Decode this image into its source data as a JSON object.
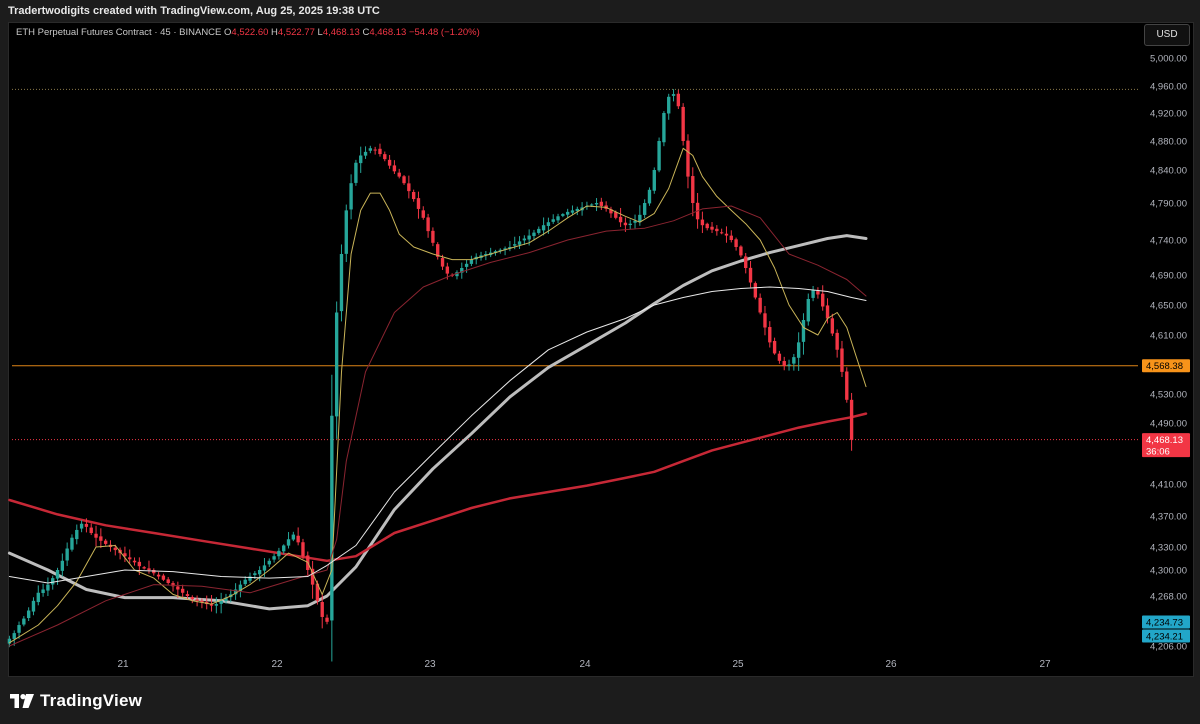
{
  "header": {
    "attribution": "Tradertwodigits created with TradingView.com, Aug 25, 2025 19:38 UTC"
  },
  "legend": {
    "symbol": "ETH Perpetual Futures Contract · 45 · BINANCE",
    "open_label": "O",
    "open": "4,522.60",
    "high_label": "H",
    "high": "4,522.77",
    "low_label": "L",
    "low": "4,468.13",
    "close_label": "C",
    "close": "4,468.13",
    "change": "−54.48 (−1.20%)"
  },
  "currency_button": "USD",
  "brand": {
    "name": "TradingView"
  },
  "colors": {
    "up": "#26a69a",
    "down": "#f23645",
    "sma_fast": "#c9b458",
    "sma_mid": "#8a2430",
    "sma_slow": "#e8e8e8",
    "sma_main": "#bdbdbd",
    "ema_long": "#c62836",
    "price_line": "#f7931a",
    "cyan_tag": "#22a6c8"
  },
  "chart_data": {
    "type": "candlestick",
    "y_ticks": [
      {
        "value": 5000,
        "label": "5,000.00"
      },
      {
        "value": 4960,
        "label": "4,960.00"
      },
      {
        "value": 4920,
        "label": "4,920.00"
      },
      {
        "value": 4880,
        "label": "4,880.00"
      },
      {
        "value": 4840,
        "label": "4,840.00"
      },
      {
        "value": 4790,
        "label": "4,790.00"
      },
      {
        "value": 4740,
        "label": "4,740.00"
      },
      {
        "value": 4690,
        "label": "4,690.00"
      },
      {
        "value": 4650,
        "label": "4,650.00"
      },
      {
        "value": 4610,
        "label": "4,610.00"
      },
      {
        "value": 4530,
        "label": "4,530.00"
      },
      {
        "value": 4490,
        "label": "4,490.00"
      },
      {
        "value": 4410,
        "label": "4,410.00"
      },
      {
        "value": 4370,
        "label": "4,370.00"
      },
      {
        "value": 4330,
        "label": "4,330.00"
      },
      {
        "value": 4300,
        "label": "4,300.00"
      },
      {
        "value": 4268,
        "label": "4,268.00"
      },
      {
        "value": 4206,
        "label": "4,206.00"
      }
    ],
    "x_ticks": [
      "21",
      "22",
      "23",
      "24",
      "25",
      "26",
      "27"
    ],
    "price_tags": [
      {
        "label": "4,568.38",
        "value": 4568.38,
        "color": "#f7931a",
        "text_color": "#000000"
      },
      {
        "label": "4,468.13",
        "value": 4468.13,
        "color": "#f23645",
        "text_color": "#ffffff",
        "sub": "36:06"
      },
      {
        "label": "4,234.73",
        "value": 4234.73,
        "color": "#22a6c8",
        "text_color": "#000000"
      },
      {
        "label": "4,234.21",
        "value": 4234.21,
        "color": "#22a6c8",
        "text_color": "#000000"
      }
    ],
    "anchors": {
      "close": [
        4215,
        4222,
        4232,
        4240,
        4250,
        4262,
        4272,
        4276,
        4282,
        4290,
        4300,
        4312,
        4328,
        4342,
        4352,
        4360,
        4356,
        4348,
        4342,
        4338,
        4334,
        4330,
        4326,
        4322,
        4318,
        4314,
        4310,
        4305,
        4302,
        4300,
        4296,
        4292,
        4288,
        4284,
        4280,
        4276,
        4272,
        4268,
        4264,
        4262,
        4260,
        4258,
        4256,
        4258,
        4262,
        4266,
        4270,
        4276,
        4282,
        4288,
        4292,
        4296,
        4300,
        4306,
        4312,
        4318,
        4325,
        4332,
        4340,
        4346,
        4336,
        4318,
        4300,
        4282,
        4262,
        4242,
        4236,
        4500,
        4640,
        4720,
        4780,
        4820,
        4850,
        4860,
        4865,
        4870,
        4868,
        4862,
        4855,
        4846,
        4838,
        4830,
        4820,
        4808,
        4796,
        4782,
        4770,
        4752,
        4736,
        4716,
        4702,
        4692,
        4690,
        4694,
        4700,
        4706,
        4712,
        4716,
        4718,
        4720,
        4722,
        4724,
        4726,
        4728,
        4730,
        4734,
        4738,
        4742,
        4746,
        4750,
        4755,
        4760,
        4764,
        4768,
        4772,
        4775,
        4778,
        4780,
        4782,
        4784,
        4786,
        4788,
        4790,
        4786,
        4782,
        4776,
        4770,
        4764,
        4760,
        4762,
        4766,
        4774,
        4790,
        4810,
        4840,
        4880,
        4920,
        4944,
        4948,
        4930,
        4880,
        4830,
        4790,
        4768,
        4760,
        4756,
        4754,
        4752,
        4750,
        4746,
        4740,
        4730,
        4718,
        4700,
        4680,
        4660,
        4640,
        4620,
        4600,
        4585,
        4575,
        4568,
        4570,
        4580,
        4600,
        4630,
        4658,
        4670,
        4664,
        4648,
        4632,
        4612,
        4590,
        4560,
        4522,
        4468
      ],
      "sma_fast_start": 0
    },
    "series": [
      {
        "name": "SMA fast",
        "color": "#c9b458",
        "width": 1,
        "points": [
          [
            0,
            4210
          ],
          [
            6,
            4232
          ],
          [
            10,
            4256
          ],
          [
            14,
            4286
          ],
          [
            18,
            4330
          ],
          [
            22,
            4332
          ],
          [
            26,
            4300
          ],
          [
            30,
            4290
          ],
          [
            34,
            4270
          ],
          [
            38,
            4262
          ],
          [
            42,
            4258
          ],
          [
            46,
            4268
          ],
          [
            50,
            4282
          ],
          [
            54,
            4300
          ],
          [
            58,
            4322
          ],
          [
            62,
            4310
          ],
          [
            65,
            4270
          ],
          [
            67,
            4300
          ],
          [
            69,
            4560
          ],
          [
            71,
            4720
          ],
          [
            73,
            4780
          ],
          [
            75,
            4805
          ],
          [
            77,
            4805
          ],
          [
            79,
            4780
          ],
          [
            81,
            4748
          ],
          [
            84,
            4730
          ],
          [
            88,
            4720
          ],
          [
            92,
            4712
          ],
          [
            96,
            4712
          ],
          [
            100,
            4720
          ],
          [
            104,
            4728
          ],
          [
            108,
            4736
          ],
          [
            112,
            4752
          ],
          [
            116,
            4770
          ],
          [
            120,
            4786
          ],
          [
            124,
            4784
          ],
          [
            128,
            4772
          ],
          [
            131,
            4764
          ],
          [
            134,
            4776
          ],
          [
            137,
            4812
          ],
          [
            140,
            4870
          ],
          [
            142,
            4860
          ],
          [
            144,
            4830
          ],
          [
            147,
            4800
          ],
          [
            150,
            4780
          ],
          [
            153,
            4762
          ],
          [
            156,
            4740
          ],
          [
            159,
            4700
          ],
          [
            162,
            4650
          ],
          [
            165,
            4620
          ],
          [
            168,
            4610
          ],
          [
            170,
            4632
          ],
          [
            172,
            4640
          ],
          [
            174,
            4620
          ],
          [
            176,
            4580
          ],
          [
            178,
            4540
          ]
        ]
      },
      {
        "name": "SMA mid",
        "color": "#8a2430",
        "width": 1,
        "points": [
          [
            0,
            4206
          ],
          [
            10,
            4232
          ],
          [
            20,
            4262
          ],
          [
            30,
            4282
          ],
          [
            40,
            4280
          ],
          [
            50,
            4272
          ],
          [
            60,
            4290
          ],
          [
            66,
            4300
          ],
          [
            68,
            4340
          ],
          [
            70,
            4440
          ],
          [
            74,
            4560
          ],
          [
            80,
            4640
          ],
          [
            86,
            4674
          ],
          [
            92,
            4690
          ],
          [
            100,
            4708
          ],
          [
            108,
            4722
          ],
          [
            116,
            4740
          ],
          [
            124,
            4752
          ],
          [
            132,
            4756
          ],
          [
            138,
            4766
          ],
          [
            144,
            4782
          ],
          [
            150,
            4786
          ],
          [
            156,
            4770
          ],
          [
            162,
            4720
          ],
          [
            168,
            4704
          ],
          [
            174,
            4684
          ],
          [
            178,
            4662
          ]
        ]
      },
      {
        "name": "SMA slow",
        "color": "#e8e8e8",
        "width": 1,
        "points": [
          [
            0,
            4292
          ],
          [
            8,
            4284
          ],
          [
            16,
            4292
          ],
          [
            24,
            4300
          ],
          [
            34,
            4298
          ],
          [
            44,
            4292
          ],
          [
            54,
            4290
          ],
          [
            62,
            4292
          ],
          [
            66,
            4306
          ],
          [
            72,
            4332
          ],
          [
            80,
            4400
          ],
          [
            88,
            4450
          ],
          [
            96,
            4500
          ],
          [
            104,
            4548
          ],
          [
            112,
            4590
          ],
          [
            120,
            4614
          ],
          [
            128,
            4632
          ],
          [
            134,
            4650
          ],
          [
            140,
            4660
          ],
          [
            146,
            4668
          ],
          [
            152,
            4672
          ],
          [
            158,
            4674
          ],
          [
            164,
            4672
          ],
          [
            170,
            4668
          ],
          [
            175,
            4660
          ],
          [
            178,
            4656
          ]
        ]
      },
      {
        "name": "SMA main",
        "color": "#bdbdbd",
        "width": 3,
        "points": [
          [
            0,
            4322
          ],
          [
            8,
            4300
          ],
          [
            16,
            4276
          ],
          [
            24,
            4266
          ],
          [
            34,
            4266
          ],
          [
            44,
            4262
          ],
          [
            54,
            4252
          ],
          [
            62,
            4256
          ],
          [
            66,
            4268
          ],
          [
            72,
            4304
          ],
          [
            80,
            4378
          ],
          [
            88,
            4430
          ],
          [
            96,
            4476
          ],
          [
            104,
            4526
          ],
          [
            112,
            4566
          ],
          [
            120,
            4596
          ],
          [
            128,
            4626
          ],
          [
            134,
            4652
          ],
          [
            140,
            4676
          ],
          [
            146,
            4696
          ],
          [
            152,
            4710
          ],
          [
            158,
            4722
          ],
          [
            164,
            4732
          ],
          [
            170,
            4742
          ],
          [
            174,
            4746
          ],
          [
            178,
            4742
          ]
        ]
      },
      {
        "name": "EMA long",
        "color": "#c62836",
        "width": 2.5,
        "points": [
          [
            0,
            4390
          ],
          [
            10,
            4372
          ],
          [
            20,
            4358
          ],
          [
            30,
            4348
          ],
          [
            40,
            4338
          ],
          [
            50,
            4328
          ],
          [
            60,
            4318
          ],
          [
            66,
            4312
          ],
          [
            72,
            4318
          ],
          [
            80,
            4348
          ],
          [
            88,
            4364
          ],
          [
            96,
            4380
          ],
          [
            104,
            4392
          ],
          [
            112,
            4400
          ],
          [
            120,
            4408
          ],
          [
            128,
            4418
          ],
          [
            134,
            4426
          ],
          [
            140,
            4440
          ],
          [
            146,
            4454
          ],
          [
            152,
            4464
          ],
          [
            158,
            4474
          ],
          [
            164,
            4484
          ],
          [
            170,
            4492
          ],
          [
            175,
            4498
          ],
          [
            178,
            4503
          ]
        ]
      }
    ]
  }
}
